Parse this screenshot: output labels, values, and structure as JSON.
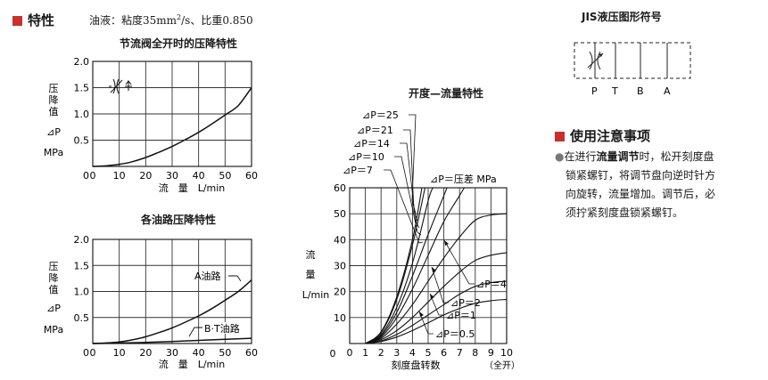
{
  "header": {
    "title": "特性",
    "fluid_note_prefix": "油液：粘度35mm",
    "fluid_note_sup": "2",
    "fluid_note_suffix": "/s、比重0.850",
    "accent_color": "#c8302c"
  },
  "jis": {
    "title": "JIS液压图形符号",
    "ports": [
      "P",
      "T",
      "B",
      "A"
    ]
  },
  "usage": {
    "title": "使用注意事项",
    "bullet": "●",
    "lines": [
      [
        "在进行",
        "流量调节",
        "时，松开刻度盘"
      ],
      [
        "锁紧螺钉，将调节盘向逆时针方"
      ],
      [
        "向旋转，流量增加。调节后，必"
      ],
      [
        "须拧紧刻度盘锁紧螺钉。"
      ]
    ]
  },
  "chart_data": [
    {
      "type": "line",
      "title": "节流阀全开时的压降特性",
      "ylabel_chars": [
        "压",
        "降",
        "值"
      ],
      "ylabel_symbol": "⊿P",
      "yunit": "MPa",
      "xlabel": "流　量　L/min",
      "xlim": [
        0,
        60
      ],
      "ylim": [
        0,
        2.0
      ],
      "xticks": [
        0,
        10,
        20,
        30,
        40,
        50,
        60
      ],
      "yticks": [
        0.5,
        1.0,
        1.5,
        2.0
      ],
      "ytick_labels": [
        "0.5",
        "1.0",
        "1.5",
        "2.0"
      ],
      "grid": true,
      "series": [
        {
          "x": [
            0,
            5,
            10,
            15,
            20,
            25,
            30,
            35,
            40,
            45,
            50,
            55,
            60
          ],
          "y": [
            0,
            0.01,
            0.04,
            0.09,
            0.17,
            0.27,
            0.38,
            0.51,
            0.65,
            0.81,
            0.98,
            1.16,
            1.5
          ]
        }
      ]
    },
    {
      "type": "line",
      "title": "各油路压降特性",
      "ylabel_chars": [
        "压",
        "降",
        "值"
      ],
      "ylabel_symbol": "⊿P",
      "yunit": "MPa",
      "xlabel": "流　量　L/min",
      "xlim": [
        0,
        60
      ],
      "ylim": [
        0,
        2.0
      ],
      "xticks": [
        0,
        10,
        20,
        30,
        40,
        50,
        60
      ],
      "yticks": [
        0.5,
        1.0,
        1.5,
        2.0
      ],
      "ytick_labels": [
        "0.5",
        "1.0",
        "1.5",
        "2.0"
      ],
      "grid": true,
      "series": [
        {
          "name": "A油路",
          "x": [
            0,
            5,
            10,
            15,
            20,
            25,
            30,
            35,
            40,
            45,
            50,
            55,
            60
          ],
          "y": [
            0,
            0.01,
            0.03,
            0.07,
            0.13,
            0.21,
            0.3,
            0.41,
            0.53,
            0.67,
            0.83,
            1.0,
            1.22
          ]
        },
        {
          "name": "B·T油路",
          "x": [
            0,
            10,
            20,
            30,
            40,
            50,
            60
          ],
          "y": [
            0,
            0.01,
            0.02,
            0.04,
            0.06,
            0.08,
            0.1
          ]
        }
      ]
    },
    {
      "type": "line",
      "title": "开度—流量特性",
      "ylabel_chars": [
        "流",
        "量"
      ],
      "yunit": "L/min",
      "xlabel": "刻度盘转数",
      "xlabel_note": "（全开）",
      "param_label": "⊿P＝压差 MPa",
      "xlim": [
        0,
        10
      ],
      "ylim": [
        0,
        60
      ],
      "xticks": [
        0,
        1,
        2,
        3,
        4,
        5,
        6,
        7,
        8,
        9,
        10
      ],
      "xtick_labels": [
        "0",
        "1",
        "2",
        "3",
        "4",
        "5",
        "6",
        "7",
        "8",
        "9",
        "10"
      ],
      "yticks": [
        10,
        20,
        30,
        40,
        50,
        60
      ],
      "ytick_labels": [
        "10",
        "20",
        "30",
        "40",
        "50",
        "60"
      ],
      "grid": true,
      "series": [
        {
          "name": "⊿P＝25",
          "x": [
            1,
            2,
            3,
            4,
            4.6
          ],
          "y": [
            0,
            4.5,
            18,
            40,
            60
          ]
        },
        {
          "name": "⊿P＝21",
          "x": [
            1,
            2,
            3,
            4,
            4.8
          ],
          "y": [
            0,
            4.2,
            17,
            38,
            60
          ]
        },
        {
          "name": "⊿P＝14",
          "x": [
            1,
            2,
            3,
            4,
            5,
            5.3
          ],
          "y": [
            0,
            3.5,
            14,
            31,
            55,
            60
          ]
        },
        {
          "name": "⊿P＝10",
          "x": [
            1,
            2,
            3,
            4,
            5,
            6,
            6.2
          ],
          "y": [
            0,
            3,
            12,
            26,
            42,
            57,
            60
          ]
        },
        {
          "name": "⊿P＝7",
          "x": [
            1,
            2,
            3,
            4,
            5,
            6,
            7,
            7.3
          ],
          "y": [
            0,
            2.5,
            10,
            21,
            34,
            47,
            57,
            60
          ]
        },
        {
          "name": "⊿P＝4",
          "x": [
            1,
            2,
            3,
            4,
            5,
            6,
            7,
            8,
            9,
            10
          ],
          "y": [
            0,
            2,
            7.5,
            15,
            24,
            33,
            41,
            47.5,
            49.5,
            50
          ]
        },
        {
          "name": "⊿P＝2",
          "x": [
            1,
            2,
            3,
            4,
            5,
            6,
            7,
            8,
            9,
            10
          ],
          "y": [
            0,
            1.5,
            5,
            10,
            16,
            22,
            27.5,
            32,
            34,
            35
          ]
        },
        {
          "name": "⊿P＝1",
          "x": [
            1,
            2,
            3,
            4,
            5,
            6,
            7,
            8,
            9,
            10
          ],
          "y": [
            0,
            1,
            3.5,
            7,
            11,
            15,
            19,
            22,
            23.5,
            24
          ]
        },
        {
          "name": "⊿P＝0.5",
          "x": [
            1,
            2,
            3,
            4,
            5,
            6,
            7,
            8,
            9,
            10
          ],
          "y": [
            0,
            0.8,
            2.5,
            5,
            8,
            11,
            13.5,
            15.5,
            16.5,
            17
          ]
        }
      ]
    }
  ]
}
